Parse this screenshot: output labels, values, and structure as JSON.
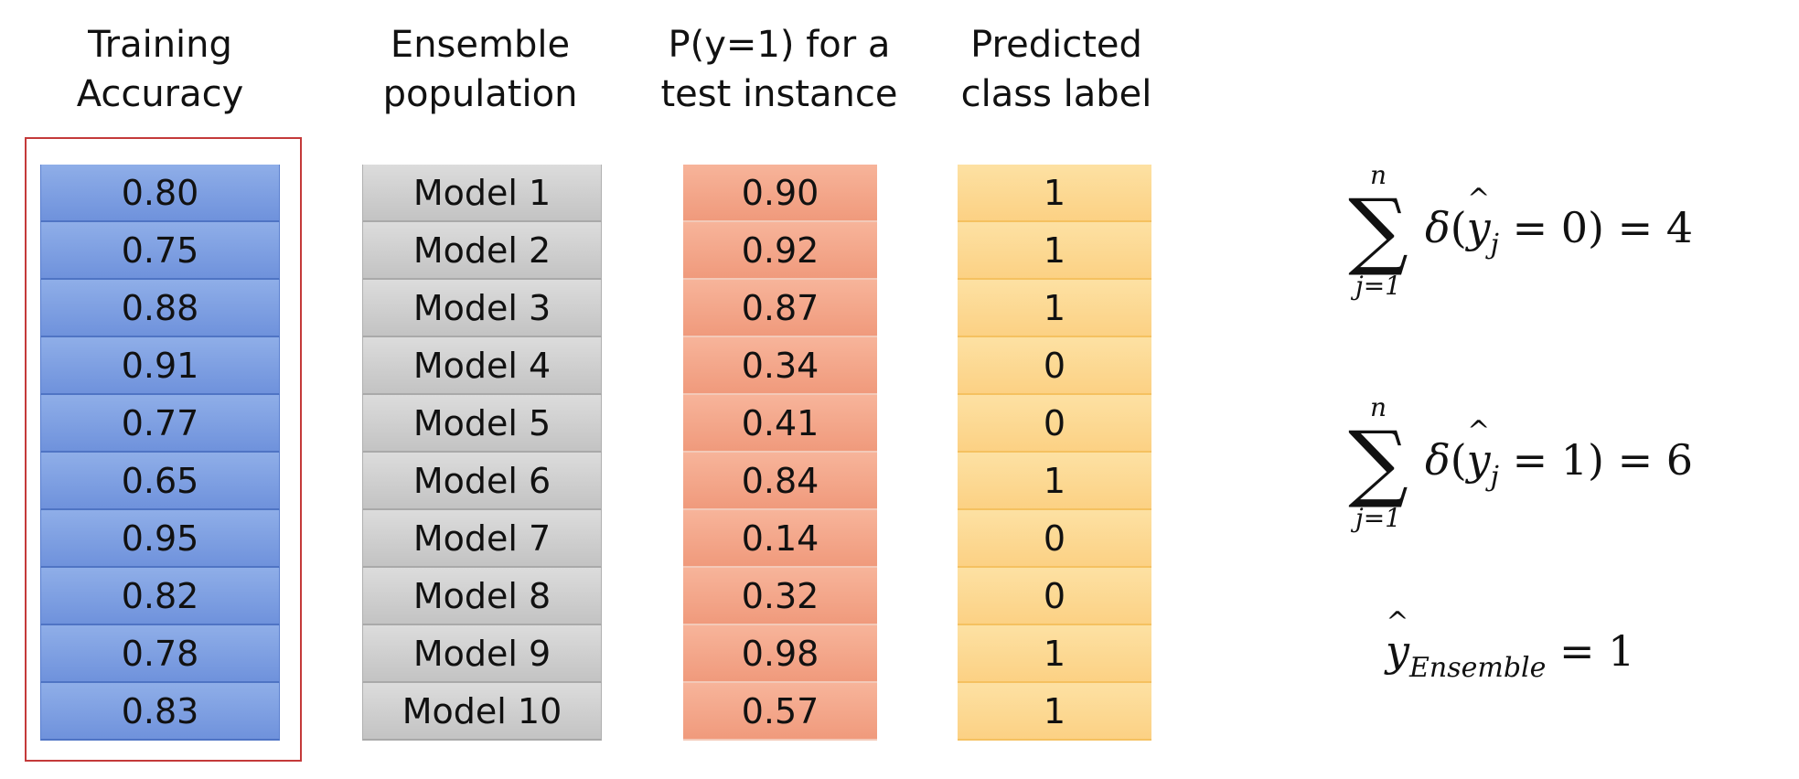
{
  "headers": {
    "accuracy": [
      "Training",
      "Accuracy"
    ],
    "population": [
      "Ensemble",
      "population"
    ],
    "probability": [
      "P(y=1) for a",
      "test instance"
    ],
    "predicted": [
      "Predicted",
      "class label"
    ]
  },
  "rows": [
    {
      "accuracy": "0.80",
      "model": "Model 1",
      "prob": "0.90",
      "label": "1"
    },
    {
      "accuracy": "0.75",
      "model": "Model 2",
      "prob": "0.92",
      "label": "1"
    },
    {
      "accuracy": "0.88",
      "model": "Model 3",
      "prob": "0.87",
      "label": "1"
    },
    {
      "accuracy": "0.91",
      "model": "Model 4",
      "prob": "0.34",
      "label": "0"
    },
    {
      "accuracy": "0.77",
      "model": "Model 5",
      "prob": "0.41",
      "label": "0"
    },
    {
      "accuracy": "0.65",
      "model": "Model 6",
      "prob": "0.84",
      "label": "1"
    },
    {
      "accuracy": "0.95",
      "model": "Model 7",
      "prob": "0.14",
      "label": "0"
    },
    {
      "accuracy": "0.82",
      "model": "Model 8",
      "prob": "0.32",
      "label": "0"
    },
    {
      "accuracy": "0.78",
      "model": "Model 9",
      "prob": "0.98",
      "label": "1"
    },
    {
      "accuracy": "0.83",
      "model": "Model 10",
      "prob": "0.57",
      "label": "1"
    }
  ],
  "formulas": {
    "sum_upper": "n",
    "sum_lower": "j=1",
    "count_zero": {
      "class": "0",
      "result": "4"
    },
    "count_one": {
      "class": "1",
      "result": "6"
    },
    "ensemble": {
      "subscript": "Ensemble",
      "value": "1"
    }
  },
  "colors": {
    "accuracy": "#7b9be0",
    "population": "#cfcfcf",
    "probability": "#f2a487",
    "predicted": "#fdd78f",
    "frame": "#c43a3a"
  }
}
